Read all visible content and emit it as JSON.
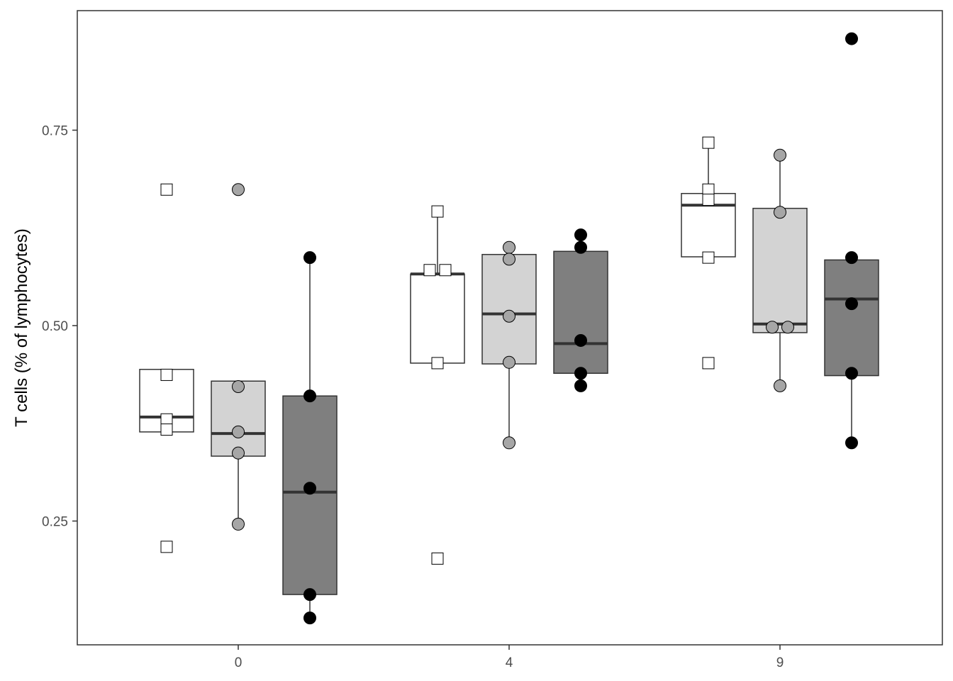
{
  "chart_data": {
    "type": "boxplot",
    "title": "",
    "xlabel": "",
    "ylabel": "T cells (% of lymphocytes)",
    "ylim": [
      0.09,
      0.9
    ],
    "y_ticks": [
      0.25,
      0.5,
      0.75
    ],
    "y_tick_labels": [
      "0.25",
      "0.50",
      "0.75"
    ],
    "x_categories": [
      "0",
      "4",
      "9"
    ],
    "legend": "none",
    "grid": false,
    "groups": [
      {
        "fill": "#ffffff",
        "point_shape": "square",
        "point_fill": "#ffffff"
      },
      {
        "fill": "#d3d3d3",
        "point_shape": "circle",
        "point_fill": "#a6a6a6"
      },
      {
        "fill": "#7f7f7f",
        "point_shape": "circle",
        "point_fill": "#000000"
      }
    ],
    "boxes": [
      {
        "x": "0",
        "group": 0,
        "q1": 0.364,
        "median": 0.383,
        "q3": 0.444,
        "whisker_low": 0.364,
        "whisker_high": 0.444,
        "points": [
          0.674,
          0.437,
          0.38,
          0.367,
          0.217
        ]
      },
      {
        "x": "0",
        "group": 1,
        "q1": 0.333,
        "median": 0.362,
        "q3": 0.429,
        "whisker_low": 0.246,
        "whisker_high": 0.429,
        "points": [
          0.674,
          0.422,
          0.364,
          0.337,
          0.246
        ]
      },
      {
        "x": "0",
        "group": 2,
        "q1": 0.156,
        "median": 0.287,
        "q3": 0.41,
        "whisker_low": 0.126,
        "whisker_high": 0.587,
        "points": [
          0.587,
          0.41,
          0.292,
          0.156,
          0.126
        ]
      },
      {
        "x": "4",
        "group": 0,
        "q1": 0.452,
        "median": 0.566,
        "q3": 0.566,
        "whisker_low": 0.452,
        "whisker_high": 0.646,
        "points": [
          0.646,
          0.571,
          0.571,
          0.452,
          0.202
        ]
      },
      {
        "x": "4",
        "group": 1,
        "q1": 0.451,
        "median": 0.515,
        "q3": 0.591,
        "whisker_low": 0.35,
        "whisker_high": 0.591,
        "points": [
          0.6,
          0.585,
          0.512,
          0.453,
          0.35
        ]
      },
      {
        "x": "4",
        "group": 2,
        "q1": 0.439,
        "median": 0.477,
        "q3": 0.595,
        "whisker_low": 0.439,
        "whisker_high": 0.595,
        "points": [
          0.616,
          0.6,
          0.481,
          0.439,
          0.423
        ]
      },
      {
        "x": "9",
        "group": 0,
        "q1": 0.588,
        "median": 0.654,
        "q3": 0.669,
        "whisker_low": 0.588,
        "whisker_high": 0.734,
        "points": [
          0.734,
          0.674,
          0.661,
          0.587,
          0.452
        ]
      },
      {
        "x": "9",
        "group": 1,
        "q1": 0.491,
        "median": 0.502,
        "q3": 0.65,
        "whisker_low": 0.423,
        "whisker_high": 0.718,
        "points": [
          0.718,
          0.645,
          0.498,
          0.498,
          0.423
        ]
      },
      {
        "x": "9",
        "group": 2,
        "q1": 0.436,
        "median": 0.534,
        "q3": 0.584,
        "whisker_low": 0.35,
        "whisker_high": 0.584,
        "points": [
          0.867,
          0.587,
          0.528,
          0.439,
          0.35
        ]
      }
    ]
  }
}
